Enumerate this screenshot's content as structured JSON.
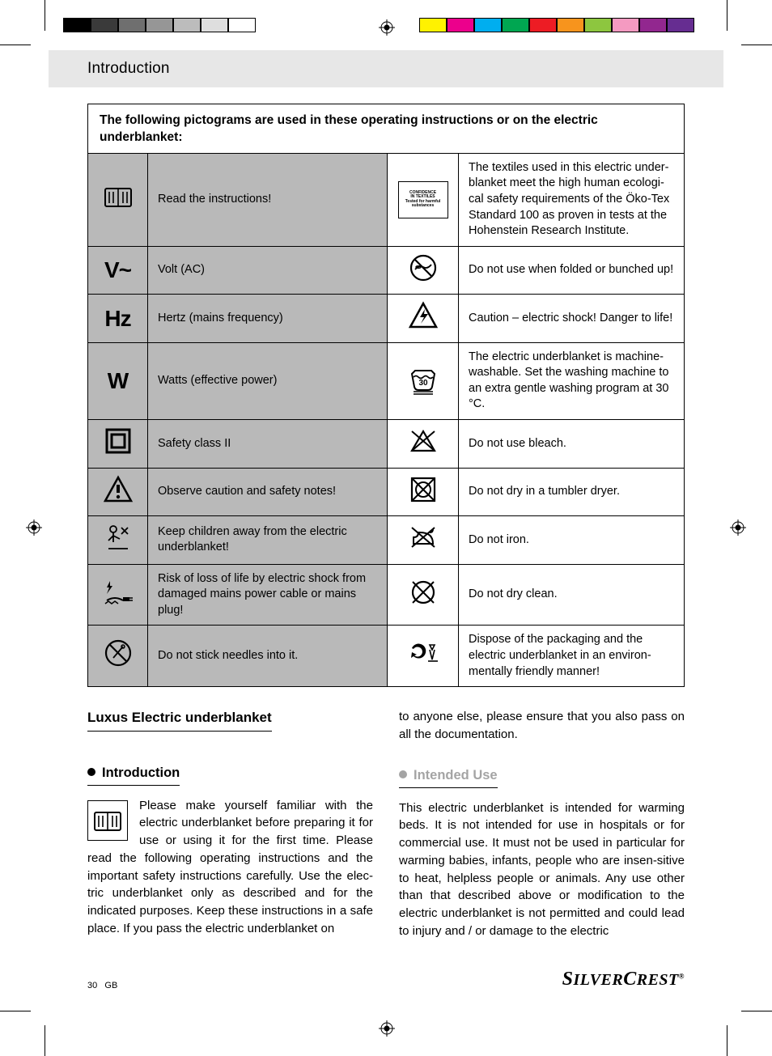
{
  "print": {
    "left_swatches": [
      "#000000",
      "#3a3a3a",
      "#6f6f6f",
      "#969696",
      "#bcbcbc",
      "#dedede",
      "#ffffff"
    ],
    "right_swatches": [
      "#fff200",
      "#ec008c",
      "#00aeef",
      "#00a651",
      "#ed1c24",
      "#f7941d",
      "#8dc63f",
      "#f49ac1",
      "#92278f",
      "#662d91"
    ]
  },
  "header": {
    "title": "Introduction"
  },
  "table": {
    "caption": "The following pictograms are used in these operating instructions or on the electric underblanket:",
    "rows": [
      {
        "left_symbol": "book",
        "left_text": "Read the instructions!",
        "right_symbol": "oeko",
        "right_text": "The textiles used in this electric under-blanket meet the high human ecologi-cal safety requirements of the Öko-Tex Standard 100 as proven in tests at the Hohenstein Research Institute."
      },
      {
        "left_symbol": "V~",
        "left_is_text": true,
        "left_text": "Volt (AC)",
        "right_symbol": "no-fold",
        "right_text": "Do not use when folded or bunched up!"
      },
      {
        "left_symbol": "Hz",
        "left_is_text": true,
        "left_text": "Hertz (mains frequency)",
        "right_symbol": "shock",
        "right_text": "Caution – electric shock! Danger to life!"
      },
      {
        "left_symbol": "W",
        "left_is_text": true,
        "left_text": "Watts (effective power)",
        "right_symbol": "wash30",
        "right_text": "The electric underblanket is machine-washable. Set the washing machine to an extra gentle washing program at 30 °C."
      },
      {
        "left_symbol": "class2",
        "left_text": "Safety class II",
        "right_symbol": "no-bleach",
        "right_text": "Do not use bleach."
      },
      {
        "left_symbol": "warning",
        "left_text": "Observe caution and safety notes!",
        "right_symbol": "no-tumble",
        "right_text": "Do not dry in a tumbler dryer."
      },
      {
        "left_symbol": "child",
        "left_text": "Keep children away from the electric underblanket!",
        "right_symbol": "no-iron",
        "right_text": "Do not iron."
      },
      {
        "left_symbol": "cable-shock",
        "left_text": "Risk of loss of life by electric shock from damaged mains power cable or mains plug!",
        "right_symbol": "no-dryclean",
        "right_text": "Do not dry clean."
      },
      {
        "left_symbol": "no-needle",
        "left_text": "Do not stick needles into it.",
        "right_symbol": "dispose",
        "right_text": "Dispose of the packaging and the electric underblanket in an environ-mentally friendly manner!"
      }
    ],
    "oeko_lines": [
      "CONFIDENCE",
      "IN TEXTILES",
      "Tested for harmful substances"
    ],
    "wash_label": "30"
  },
  "left_col": {
    "title": "Luxus Electric underblanket",
    "sub": "Introduction",
    "body": "Please make yourself familiar with the electric underblanket before preparing it for use or using it for the first time. Please read the following operating instructions and the important safety instructions carefully. Use the elec-tric underblanket only as described and for the indicated purposes. Keep these instructions in a safe place. If you pass the electric underblanket on"
  },
  "right_col": {
    "lead": "to anyone else, please ensure that you also pass on all the documentation.",
    "sub": "Intended Use",
    "body": "This electric underblanket is intended for warming beds. It is not intended for use in hospitals or for commercial use. It must not be used in particular for warming babies, infants, people who are insen-sitive to heat, helpless people or animals. Any use other than that described above or modification to the electric underblanket is not permitted and could lead to injury and / or damage to the electric"
  },
  "footer": {
    "page_no": "30",
    "lang": "GB",
    "brand_a": "S",
    "brand_b": "ILVER",
    "brand_c": "C",
    "brand_d": "REST"
  }
}
